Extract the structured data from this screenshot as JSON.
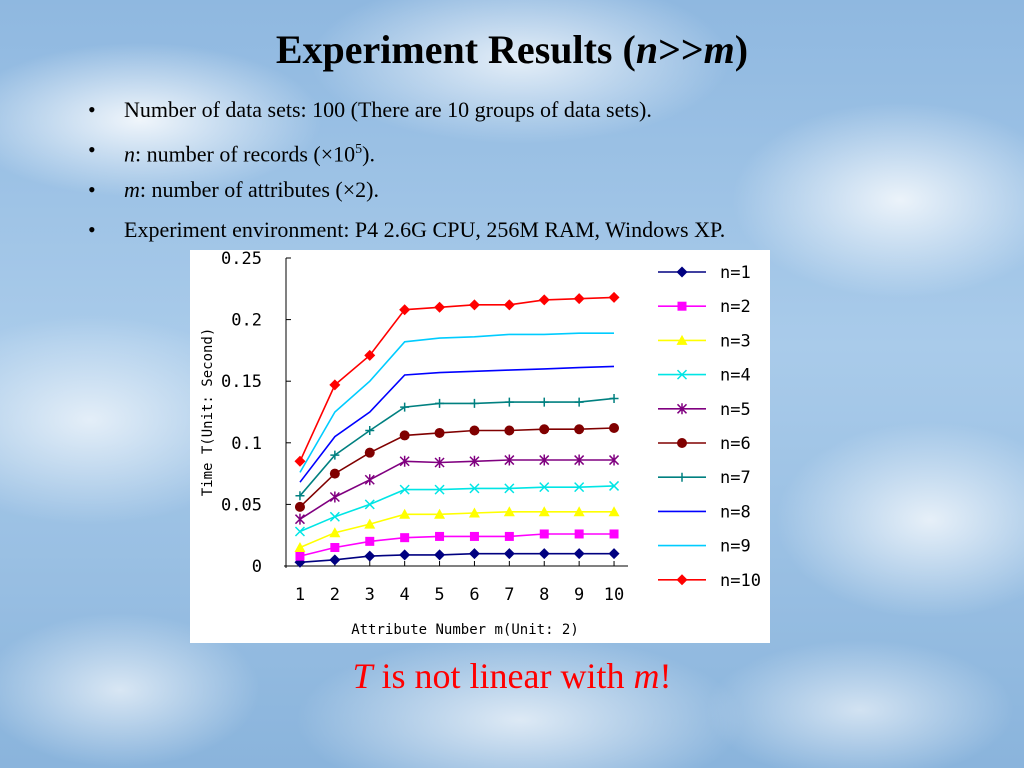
{
  "slide": {
    "title_main": "Experiment Results (",
    "title_var1": "n",
    "title_op": ">>",
    "title_var2": "m",
    "title_close": ")",
    "bullets": [
      {
        "text": "Number of data sets: 100 (There are 10 groups of data sets)."
      },
      {
        "var": "n",
        "text": ": number of records (×10",
        "sup": "5",
        "tail": ")."
      },
      {
        "var": "m",
        "text": ": number of attributes (×2)."
      },
      {
        "text": "Experiment environment: P4 2.6G CPU, 256M RAM, Windows XP."
      }
    ],
    "conclusion_var1": "T",
    "conclusion_text": " is not linear with ",
    "conclusion_var2": "m",
    "conclusion_tail": "!"
  },
  "chart_data": {
    "type": "line",
    "xlabel": "Attribute Number m(Unit: 2)",
    "ylabel": "Time T(Unit: Second)",
    "x": [
      1,
      2,
      3,
      4,
      5,
      6,
      7,
      8,
      9,
      10
    ],
    "xticks": [
      "1",
      "2",
      "3",
      "4",
      "5",
      "6",
      "7",
      "8",
      "9",
      "10"
    ],
    "yticks": [
      "0",
      "0.05",
      "0.1",
      "0.15",
      "0.2",
      "0.25"
    ],
    "ylim": [
      0,
      0.25
    ],
    "legend_position": "right",
    "series": [
      {
        "name": "n=1",
        "color": "#000080",
        "marker": "diamond",
        "values": [
          0.003,
          0.005,
          0.008,
          0.009,
          0.009,
          0.01,
          0.01,
          0.01,
          0.01,
          0.01
        ]
      },
      {
        "name": "n=2",
        "color": "#ff00ff",
        "marker": "square",
        "values": [
          0.008,
          0.015,
          0.02,
          0.023,
          0.024,
          0.024,
          0.024,
          0.026,
          0.026,
          0.026
        ]
      },
      {
        "name": "n=3",
        "color": "#ffff00",
        "marker": "triangle",
        "values": [
          0.015,
          0.027,
          0.034,
          0.042,
          0.042,
          0.043,
          0.044,
          0.044,
          0.044,
          0.044
        ]
      },
      {
        "name": "n=4",
        "color": "#00e5e5",
        "marker": "x",
        "values": [
          0.028,
          0.04,
          0.05,
          0.062,
          0.062,
          0.063,
          0.063,
          0.064,
          0.064,
          0.065
        ]
      },
      {
        "name": "n=5",
        "color": "#800080",
        "marker": "star",
        "values": [
          0.038,
          0.056,
          0.07,
          0.085,
          0.084,
          0.085,
          0.086,
          0.086,
          0.086,
          0.086
        ]
      },
      {
        "name": "n=6",
        "color": "#800000",
        "marker": "circle",
        "values": [
          0.048,
          0.075,
          0.092,
          0.106,
          0.108,
          0.11,
          0.11,
          0.111,
          0.111,
          0.112
        ]
      },
      {
        "name": "n=7",
        "color": "#008080",
        "marker": "plus",
        "values": [
          0.057,
          0.09,
          0.11,
          0.129,
          0.132,
          0.132,
          0.133,
          0.133,
          0.133,
          0.136
        ]
      },
      {
        "name": "n=8",
        "color": "#0000ff",
        "marker": "none",
        "values": [
          0.068,
          0.105,
          0.125,
          0.155,
          0.157,
          0.158,
          0.159,
          0.16,
          0.161,
          0.162
        ]
      },
      {
        "name": "n=9",
        "color": "#00ccff",
        "marker": "none",
        "values": [
          0.076,
          0.125,
          0.15,
          0.182,
          0.185,
          0.186,
          0.188,
          0.188,
          0.189,
          0.189
        ]
      },
      {
        "name": "n=10",
        "color": "#ff0000",
        "marker": "diamond",
        "values": [
          0.085,
          0.147,
          0.171,
          0.208,
          0.21,
          0.212,
          0.212,
          0.216,
          0.217,
          0.218
        ]
      }
    ]
  }
}
